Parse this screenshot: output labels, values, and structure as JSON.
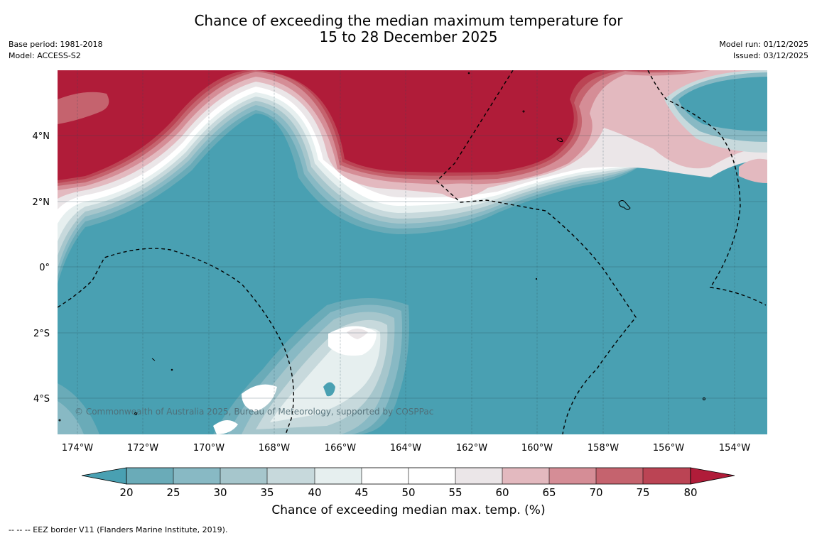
{
  "header": {
    "title_line1": "Chance of exceeding the median maximum temperature for",
    "title_line2": "15 to 28 December 2025",
    "base_period": "Base period: 1981-2018",
    "model": "Model: ACCESS-S2",
    "model_run": "Model run: 01/12/2025",
    "issued": "Issued: 03/12/2025"
  },
  "map": {
    "longitude_labels": [
      "174°W",
      "172°W",
      "170°W",
      "168°W",
      "166°W",
      "164°W",
      "162°W",
      "160°W",
      "158°W",
      "156°W",
      "154°W"
    ],
    "latitude_labels": [
      "4°N",
      "2°N",
      "0°",
      "2°S",
      "4°S"
    ],
    "copyright": "© Commonwealth of Australia 2025, Bureau of Meteorology, supported by COSPPac"
  },
  "colorbar": {
    "label": "Chance of exceeding median max. temp. (%)",
    "ticks": [
      "20",
      "25",
      "30",
      "35",
      "40",
      "45",
      "50",
      "55",
      "60",
      "65",
      "70",
      "75",
      "80"
    ],
    "colors": {
      "below_20": "#49a0b2",
      "b20_25": "#6aabb8",
      "b25_30": "#88b9c4",
      "b30_35": "#a6c6cc",
      "b35_40": "#c7d9dc",
      "b40_45": "#e6efef",
      "b45_50": "#ffffff",
      "b50_55": "#ffffff",
      "b55_60": "#ebe6e8",
      "b60_65": "#e3b9bf",
      "b65_70": "#d58d96",
      "b70_75": "#c5636e",
      "b75_80": "#bb4454",
      "above_80": "#b01c39"
    }
  },
  "footnote": "--  --  -- EEZ border V11 (Flanders Marine Institute, 2019)."
}
